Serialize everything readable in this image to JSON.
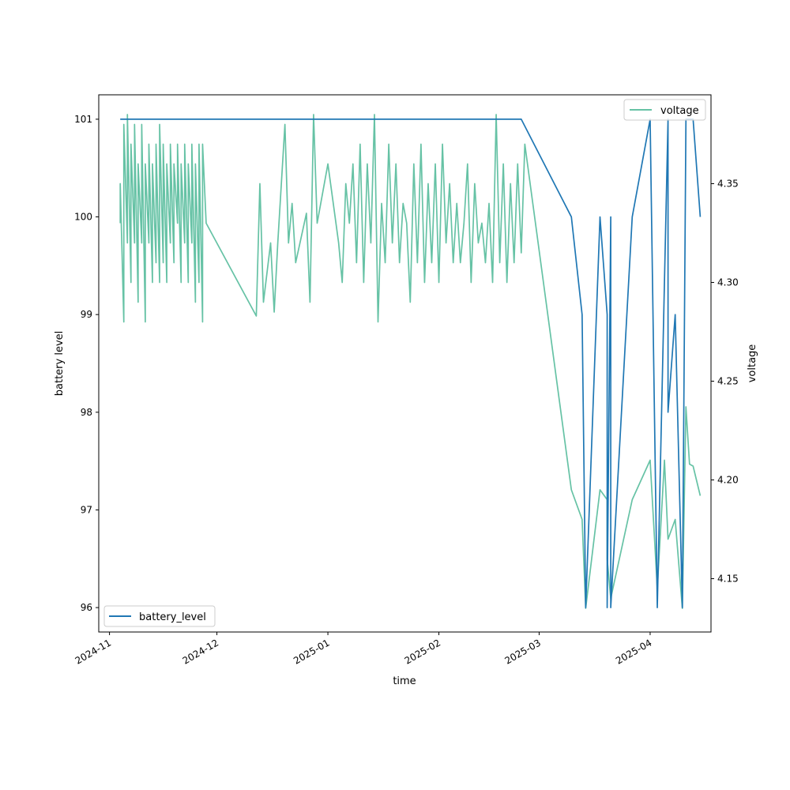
{
  "chart_data": {
    "type": "line",
    "xlabel": "time",
    "x_ticks": [
      "2024-11",
      "2024-12",
      "2025-01",
      "2025-02",
      "2025-03",
      "2025-04"
    ],
    "xlim": [
      "2024-10-29",
      "2025-04-18"
    ],
    "left_axis": {
      "label": "battery level",
      "ticks": [
        96,
        97,
        98,
        99,
        100,
        101
      ],
      "ylim": [
        95.75,
        101.25
      ]
    },
    "right_axis": {
      "label": "voltage",
      "ticks": [
        4.15,
        4.2,
        4.25,
        4.3,
        4.35
      ],
      "ylim": [
        4.123,
        4.395
      ]
    },
    "legends": {
      "left": {
        "placement": "lower-left",
        "entries": [
          "battery_level"
        ]
      },
      "right": {
        "placement": "upper-right",
        "entries": [
          "voltage"
        ]
      }
    },
    "series": [
      {
        "name": "battery_level",
        "axis": "left",
        "color": "#1f77b4",
        "points": [
          [
            "2024-11-04",
            101
          ],
          [
            "2025-02-24",
            101
          ],
          [
            "2025-03-10",
            100
          ],
          [
            "2025-03-13",
            99
          ],
          [
            "2025-03-14",
            96
          ],
          [
            "2025-03-18",
            100
          ],
          [
            "2025-03-20",
            99
          ],
          [
            "2025-03-20",
            96
          ],
          [
            "2025-03-21",
            100
          ],
          [
            "2025-03-21",
            96
          ],
          [
            "2025-03-27",
            100
          ],
          [
            "2025-04-01",
            101
          ],
          [
            "2025-04-03",
            96
          ],
          [
            "2025-04-06",
            101
          ],
          [
            "2025-04-06",
            98
          ],
          [
            "2025-04-08",
            99
          ],
          [
            "2025-04-10",
            96
          ],
          [
            "2025-04-11",
            101
          ],
          [
            "2025-04-13",
            101
          ],
          [
            "2025-04-15",
            100
          ]
        ]
      },
      {
        "name": "voltage",
        "axis": "right",
        "color": "#66c2a5",
        "points": [
          [
            "2024-11-04",
            4.33
          ],
          [
            "2024-11-04",
            4.35
          ],
          [
            "2024-11-05",
            4.28
          ],
          [
            "2024-11-05",
            4.38
          ],
          [
            "2024-11-06",
            4.32
          ],
          [
            "2024-11-06",
            4.385
          ],
          [
            "2024-11-07",
            4.3
          ],
          [
            "2024-11-07",
            4.37
          ],
          [
            "2024-11-08",
            4.32
          ],
          [
            "2024-11-08",
            4.38
          ],
          [
            "2024-11-09",
            4.29
          ],
          [
            "2024-11-09",
            4.36
          ],
          [
            "2024-11-10",
            4.32
          ],
          [
            "2024-11-10",
            4.38
          ],
          [
            "2024-11-11",
            4.28
          ],
          [
            "2024-11-11",
            4.36
          ],
          [
            "2024-11-12",
            4.32
          ],
          [
            "2024-11-12",
            4.37
          ],
          [
            "2024-11-13",
            4.3
          ],
          [
            "2024-11-13",
            4.36
          ],
          [
            "2024-11-14",
            4.31
          ],
          [
            "2024-11-14",
            4.37
          ],
          [
            "2024-11-15",
            4.3
          ],
          [
            "2024-11-15",
            4.38
          ],
          [
            "2024-11-16",
            4.31
          ],
          [
            "2024-11-16",
            4.37
          ],
          [
            "2024-11-17",
            4.3
          ],
          [
            "2024-11-17",
            4.36
          ],
          [
            "2024-11-18",
            4.32
          ],
          [
            "2024-11-18",
            4.37
          ],
          [
            "2024-11-19",
            4.31
          ],
          [
            "2024-11-19",
            4.36
          ],
          [
            "2024-11-20",
            4.33
          ],
          [
            "2024-11-20",
            4.37
          ],
          [
            "2024-11-21",
            4.3
          ],
          [
            "2024-11-21",
            4.36
          ],
          [
            "2024-11-22",
            4.32
          ],
          [
            "2024-11-22",
            4.37
          ],
          [
            "2024-11-23",
            4.3
          ],
          [
            "2024-11-23",
            4.36
          ],
          [
            "2024-11-24",
            4.32
          ],
          [
            "2024-11-24",
            4.37
          ],
          [
            "2024-11-25",
            4.29
          ],
          [
            "2024-11-25",
            4.36
          ],
          [
            "2024-11-26",
            4.3
          ],
          [
            "2024-11-26",
            4.37
          ],
          [
            "2024-11-27",
            4.28
          ],
          [
            "2024-11-27",
            4.37
          ],
          [
            "2024-11-28",
            4.33
          ],
          [
            "2024-12-12",
            4.283
          ],
          [
            "2024-12-13",
            4.35
          ],
          [
            "2024-12-14",
            4.29
          ],
          [
            "2024-12-16",
            4.32
          ],
          [
            "2024-12-17",
            4.285
          ],
          [
            "2024-12-18",
            4.32
          ],
          [
            "2024-12-20",
            4.38
          ],
          [
            "2024-12-21",
            4.32
          ],
          [
            "2024-12-22",
            4.34
          ],
          [
            "2024-12-23",
            4.31
          ],
          [
            "2024-12-26",
            4.335
          ],
          [
            "2024-12-27",
            4.29
          ],
          [
            "2024-12-28",
            4.385
          ],
          [
            "2024-12-29",
            4.33
          ],
          [
            "2025-01-01",
            4.36
          ],
          [
            "2025-01-04",
            4.32
          ],
          [
            "2025-01-05",
            4.3
          ],
          [
            "2025-01-06",
            4.35
          ],
          [
            "2025-01-07",
            4.33
          ],
          [
            "2025-01-08",
            4.36
          ],
          [
            "2025-01-09",
            4.31
          ],
          [
            "2025-01-10",
            4.37
          ],
          [
            "2025-01-11",
            4.3
          ],
          [
            "2025-01-12",
            4.36
          ],
          [
            "2025-01-13",
            4.32
          ],
          [
            "2025-01-14",
            4.385
          ],
          [
            "2025-01-15",
            4.28
          ],
          [
            "2025-01-16",
            4.34
          ],
          [
            "2025-01-17",
            4.31
          ],
          [
            "2025-01-18",
            4.37
          ],
          [
            "2025-01-19",
            4.32
          ],
          [
            "2025-01-20",
            4.36
          ],
          [
            "2025-01-21",
            4.31
          ],
          [
            "2025-01-22",
            4.34
          ],
          [
            "2025-01-23",
            4.33
          ],
          [
            "2025-01-24",
            4.29
          ],
          [
            "2025-01-25",
            4.36
          ],
          [
            "2025-01-26",
            4.31
          ],
          [
            "2025-01-27",
            4.37
          ],
          [
            "2025-01-28",
            4.3
          ],
          [
            "2025-01-29",
            4.35
          ],
          [
            "2025-01-30",
            4.31
          ],
          [
            "2025-01-31",
            4.36
          ],
          [
            "2025-02-01",
            4.3
          ],
          [
            "2025-02-02",
            4.37
          ],
          [
            "2025-02-03",
            4.32
          ],
          [
            "2025-02-04",
            4.35
          ],
          [
            "2025-02-05",
            4.31
          ],
          [
            "2025-02-06",
            4.34
          ],
          [
            "2025-02-07",
            4.31
          ],
          [
            "2025-02-08",
            4.33
          ],
          [
            "2025-02-09",
            4.36
          ],
          [
            "2025-02-10",
            4.3
          ],
          [
            "2025-02-11",
            4.35
          ],
          [
            "2025-02-12",
            4.32
          ],
          [
            "2025-02-13",
            4.33
          ],
          [
            "2025-02-14",
            4.31
          ],
          [
            "2025-02-15",
            4.34
          ],
          [
            "2025-02-16",
            4.3
          ],
          [
            "2025-02-17",
            4.385
          ],
          [
            "2025-02-18",
            4.31
          ],
          [
            "2025-02-19",
            4.36
          ],
          [
            "2025-02-20",
            4.3
          ],
          [
            "2025-02-21",
            4.35
          ],
          [
            "2025-02-22",
            4.31
          ],
          [
            "2025-02-23",
            4.36
          ],
          [
            "2025-02-24",
            4.315
          ],
          [
            "2025-02-25",
            4.37
          ],
          [
            "2025-03-10",
            4.195
          ],
          [
            "2025-03-13",
            4.18
          ],
          [
            "2025-03-14",
            4.135
          ],
          [
            "2025-03-18",
            4.195
          ],
          [
            "2025-03-20",
            4.19
          ],
          [
            "2025-03-20",
            4.16
          ],
          [
            "2025-03-21",
            4.14
          ],
          [
            "2025-03-27",
            4.19
          ],
          [
            "2025-04-01",
            4.21
          ],
          [
            "2025-04-03",
            4.145
          ],
          [
            "2025-04-05",
            4.21
          ],
          [
            "2025-04-06",
            4.17
          ],
          [
            "2025-04-08",
            4.18
          ],
          [
            "2025-04-10",
            4.135
          ],
          [
            "2025-04-11",
            4.237
          ],
          [
            "2025-04-12",
            4.208
          ],
          [
            "2025-04-13",
            4.207
          ],
          [
            "2025-04-15",
            4.192
          ]
        ]
      }
    ],
    "grid": false
  }
}
